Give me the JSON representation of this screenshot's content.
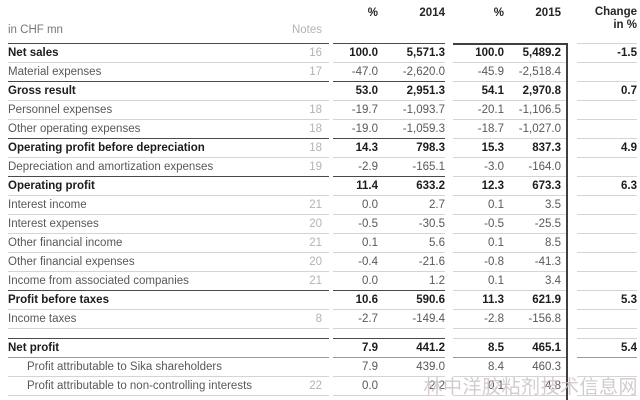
{
  "header": {
    "unit_label": "in CHF mn",
    "notes_label": "Notes",
    "pct_label_2014": "%",
    "year_2014": "2014",
    "pct_label_2015": "%",
    "year_2015": "2015",
    "change_line1": "Change",
    "change_line2": "in %"
  },
  "table": {
    "rows": [
      {
        "label": "Net sales",
        "note": "16",
        "pct_2014": "100.0",
        "value_2014": "5,571.3",
        "pct_2015": "100.0",
        "value_2015": "5,489.2",
        "change": "-1.5",
        "bold": true,
        "indent": false,
        "sep": "dark"
      },
      {
        "label": "Material expenses",
        "note": "17",
        "pct_2014": "-47.0",
        "value_2014": "-2,620.0",
        "pct_2015": "-45.9",
        "value_2015": "-2,518.4",
        "change": "",
        "bold": false,
        "indent": false,
        "sep": "light"
      },
      {
        "label": "Gross result",
        "note": "",
        "pct_2014": "53.0",
        "value_2014": "2,951.3",
        "pct_2015": "54.1",
        "value_2015": "2,970.8",
        "change": "0.7",
        "bold": true,
        "indent": false,
        "sep": "dark"
      },
      {
        "label": "Personnel expenses",
        "note": "18",
        "pct_2014": "-19.7",
        "value_2014": "-1,093.7",
        "pct_2015": "-20.1",
        "value_2015": "-1,106.5",
        "change": "",
        "bold": false,
        "indent": false,
        "sep": "light"
      },
      {
        "label": "Other operating expenses",
        "note": "18",
        "pct_2014": "-19.0",
        "value_2014": "-1,059.3",
        "pct_2015": "-18.7",
        "value_2015": "-1,027.0",
        "change": "",
        "bold": false,
        "indent": false,
        "sep": "light"
      },
      {
        "label": "Operating profit before depreciation",
        "note": "18",
        "pct_2014": "14.3",
        "value_2014": "798.3",
        "pct_2015": "15.3",
        "value_2015": "837.3",
        "change": "4.9",
        "bold": true,
        "indent": false,
        "sep": "dark"
      },
      {
        "label": "Depreciation and amortization expenses",
        "note": "19",
        "pct_2014": "-2.9",
        "value_2014": "-165.1",
        "pct_2015": "-3.0",
        "value_2015": "-164.0",
        "change": "",
        "bold": false,
        "indent": false,
        "sep": "light"
      },
      {
        "label": "Operating profit",
        "note": "",
        "pct_2014": "11.4",
        "value_2014": "633.2",
        "pct_2015": "12.3",
        "value_2015": "673.3",
        "change": "6.3",
        "bold": true,
        "indent": false,
        "sep": "dark"
      },
      {
        "label": "Interest income",
        "note": "21",
        "pct_2014": "0.0",
        "value_2014": "2.7",
        "pct_2015": "0.1",
        "value_2015": "3.5",
        "change": "",
        "bold": false,
        "indent": false,
        "sep": "light"
      },
      {
        "label": "Interest expenses",
        "note": "20",
        "pct_2014": "-0.5",
        "value_2014": "-30.5",
        "pct_2015": "-0.5",
        "value_2015": "-25.5",
        "change": "",
        "bold": false,
        "indent": false,
        "sep": "light"
      },
      {
        "label": "Other financial income",
        "note": "21",
        "pct_2014": "0.1",
        "value_2014": "5.6",
        "pct_2015": "0.1",
        "value_2015": "8.5",
        "change": "",
        "bold": false,
        "indent": false,
        "sep": "light"
      },
      {
        "label": "Other financial expenses",
        "note": "20",
        "pct_2014": "-0.4",
        "value_2014": "-21.6",
        "pct_2015": "-0.8",
        "value_2015": "-41.3",
        "change": "",
        "bold": false,
        "indent": false,
        "sep": "light"
      },
      {
        "label": "Income from associated companies",
        "note": "21",
        "pct_2014": "0.0",
        "value_2014": "1.2",
        "pct_2015": "0.1",
        "value_2015": "3.4",
        "change": "",
        "bold": false,
        "indent": false,
        "sep": "light"
      },
      {
        "label": "Profit before taxes",
        "note": "",
        "pct_2014": "10.6",
        "value_2014": "590.6",
        "pct_2015": "11.3",
        "value_2015": "621.9",
        "change": "5.3",
        "bold": true,
        "indent": false,
        "sep": "dark"
      },
      {
        "label": "Income taxes",
        "note": "8",
        "pct_2014": "-2.7",
        "value_2014": "-149.4",
        "pct_2015": "-2.8",
        "value_2015": "-156.8",
        "change": "",
        "bold": false,
        "indent": false,
        "sep": "light"
      },
      {
        "spacer": true,
        "height": 10,
        "sep": "light"
      },
      {
        "label": "Net profit",
        "note": "",
        "pct_2014": "7.9",
        "value_2014": "441.2",
        "pct_2015": "8.5",
        "value_2015": "465.1",
        "change": "5.4",
        "bold": true,
        "indent": false,
        "sep": "dark"
      },
      {
        "label": "Profit attributable to Sika shareholders",
        "note": "",
        "pct_2014": "7.9",
        "value_2014": "439.0",
        "pct_2015": "8.4",
        "value_2015": "460.3",
        "change": "",
        "bold": false,
        "indent": true,
        "sep": "medium"
      },
      {
        "label": "Profit attributable to non-controlling interests",
        "note": "22",
        "pct_2014": "0.0",
        "value_2014": "2.2",
        "pct_2015": "0.1",
        "value_2015": "4.8",
        "change": "",
        "bold": false,
        "indent": true,
        "sep": "light"
      },
      {
        "spacer": true,
        "height": 4,
        "sep": "light"
      }
    ]
  },
  "watermark": {
    "text": "林中洋胶粘剂技术信息网"
  },
  "colors": {
    "text_bold": "#1c1c1c",
    "text_regular": "#585858",
    "text_notes": "#b3b3b3",
    "rule_light": "#d4d4d4",
    "rule_dark": "#4a4a4a",
    "box_border_2015": "#3f3f3f",
    "watermark": "#cabfbf",
    "background": "#ffffff"
  }
}
